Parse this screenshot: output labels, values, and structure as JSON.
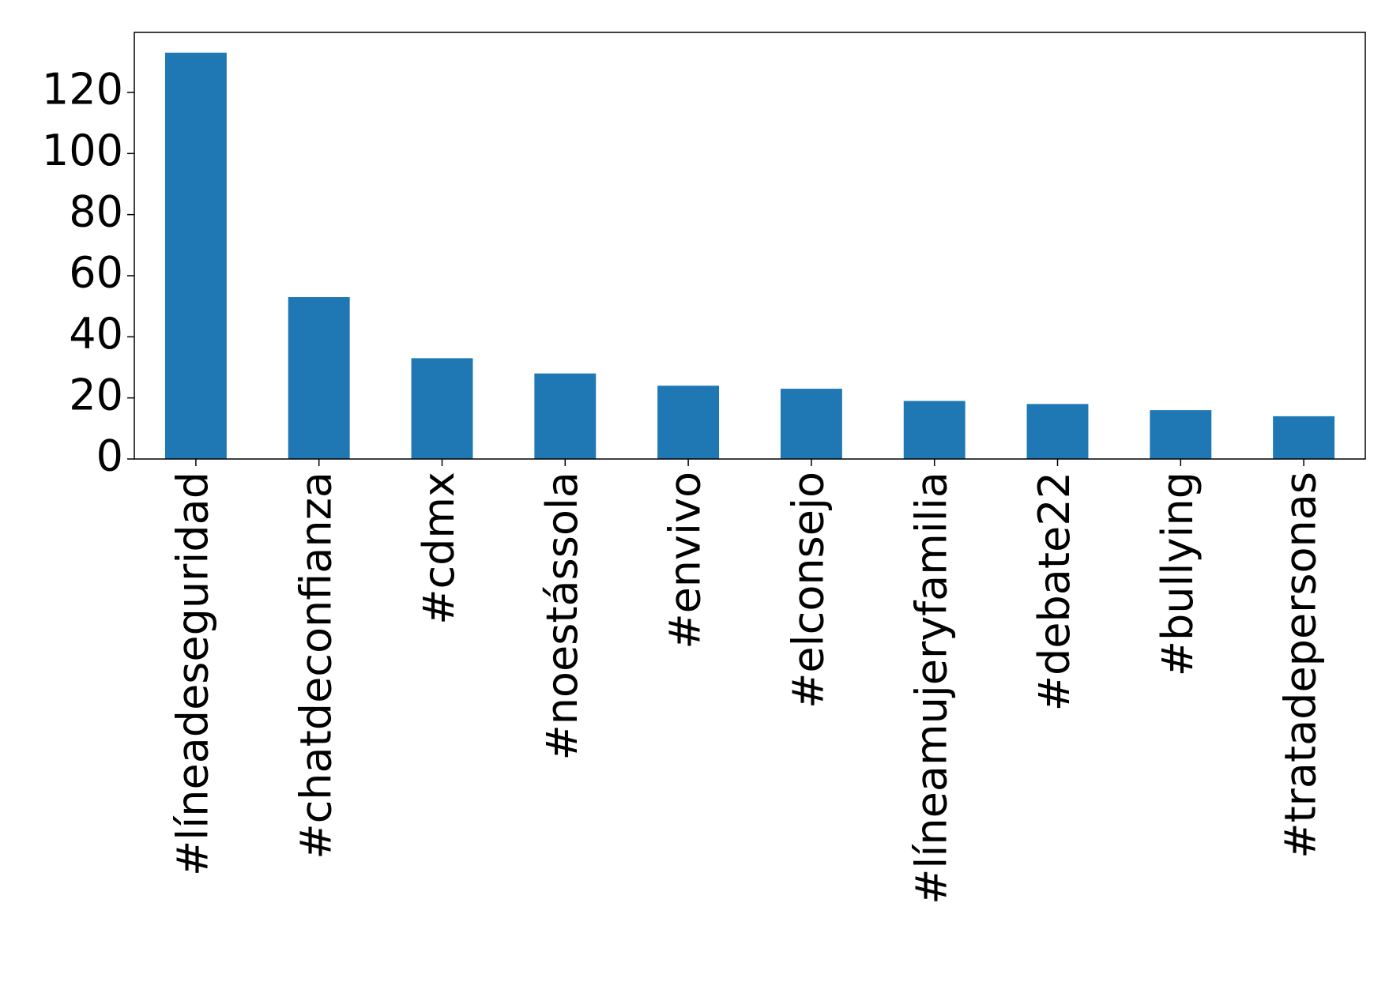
{
  "chart_data": {
    "type": "bar",
    "categories": [
      "#líneadeseguridad",
      "#chatdeconfianza",
      "#cdmx",
      "#noestássola",
      "#envivo",
      "#elconsejo",
      "#líneamujeryfamilia",
      "#debate22",
      "#bullying",
      "#tratadepersonas"
    ],
    "values": [
      133,
      53,
      33,
      28,
      24,
      23,
      19,
      18,
      16,
      14
    ],
    "color": "#1f77b4",
    "ylim": [
      0,
      139.65
    ],
    "yticks": [
      0,
      20,
      40,
      60,
      80,
      100,
      120
    ],
    "grid": false
  }
}
